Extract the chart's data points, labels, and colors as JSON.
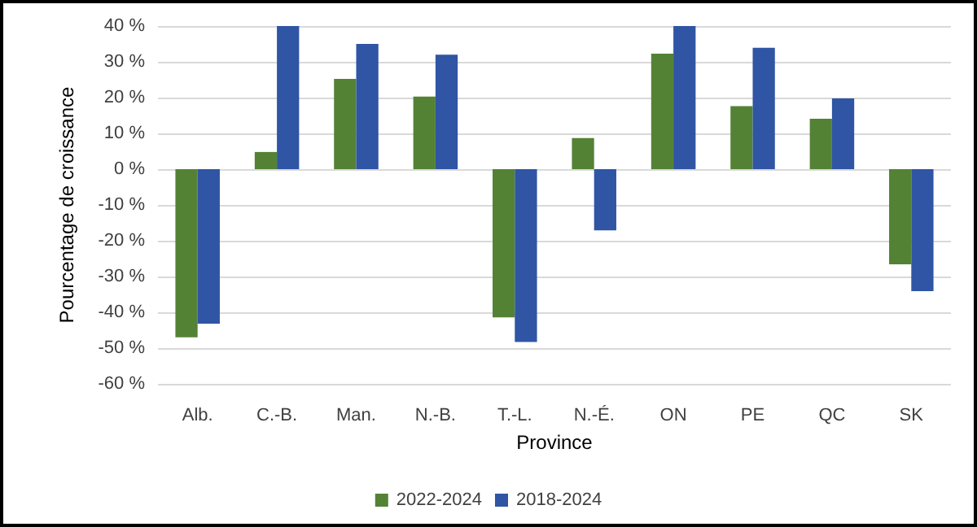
{
  "chart_data": {
    "type": "bar",
    "xlabel": "Province",
    "ylabel": "Pourcentage de croissance",
    "categories": [
      "Alb.",
      "C.-B.",
      "Man.",
      "N.-B.",
      "T.-L.",
      "N.-É.",
      "ON",
      "PE",
      "QC",
      "SK"
    ],
    "series": [
      {
        "name": "2022-2024",
        "color": "#548235",
        "values": [
          -47,
          4.8,
          25.2,
          20.3,
          -41.4,
          8.7,
          32.3,
          17.6,
          14.1,
          -26.6
        ]
      },
      {
        "name": "2018-2024",
        "color": "#2f55a4",
        "values": [
          -43.2,
          40,
          35,
          32,
          -48.3,
          -17.1,
          40,
          33.9,
          19.8,
          -34.1
        ]
      }
    ],
    "ylim": [
      -60,
      40
    ],
    "yticks": [
      {
        "value": -60,
        "label": "-60 %"
      },
      {
        "value": -50,
        "label": "-50 %"
      },
      {
        "value": -40,
        "label": "-40 %"
      },
      {
        "value": -30,
        "label": "-30 %"
      },
      {
        "value": -20,
        "label": "-20 %"
      },
      {
        "value": -10,
        "label": "-10 %"
      },
      {
        "value": 0,
        "label": "0 %"
      },
      {
        "value": 10,
        "label": "10 %"
      },
      {
        "value": 20,
        "label": "20 %"
      },
      {
        "value": 30,
        "label": "30 %"
      },
      {
        "value": 40,
        "label": "40 %"
      }
    ],
    "grid": "y",
    "legend": "bottom"
  }
}
